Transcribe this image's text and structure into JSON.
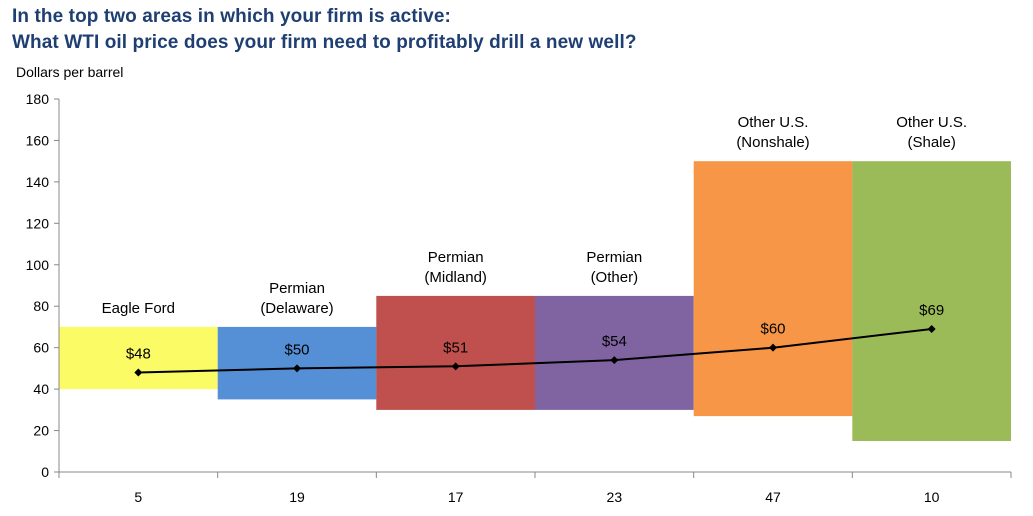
{
  "title": {
    "line1": "In the top two areas in which your firm is active:",
    "line2": "What WTI oil price does your firm need to profitably drill a new well?"
  },
  "chart_data": {
    "type": "bar",
    "ylabel": "Dollars  per barrel",
    "ylim": [
      0,
      180
    ],
    "yticks": [
      0,
      20,
      40,
      60,
      80,
      100,
      120,
      140,
      160,
      180
    ],
    "categories": [
      {
        "name_lines": [
          "Eagle  Ford"
        ],
        "count": "5",
        "low": 40,
        "high": 70,
        "price": 48,
        "price_label": "$48",
        "color": "#fbfb66"
      },
      {
        "name_lines": [
          "Permian",
          "(Delaware)"
        ],
        "count": "19",
        "low": 35,
        "high": 70,
        "price": 50,
        "price_label": "$50",
        "color": "#5590d6"
      },
      {
        "name_lines": [
          "Permian",
          "(Midland)"
        ],
        "count": "17",
        "low": 30,
        "high": 85,
        "price": 51,
        "price_label": "$51",
        "color": "#c0504d"
      },
      {
        "name_lines": [
          "Permian",
          "(Other)"
        ],
        "count": "23",
        "low": 30,
        "high": 85,
        "price": 54,
        "price_label": "$54",
        "color": "#8064a2"
      },
      {
        "name_lines": [
          "Other  U.S.",
          "(Nonshale)"
        ],
        "count": "47",
        "low": 27,
        "high": 150,
        "price": 60,
        "price_label": "$60",
        "color": "#f79646"
      },
      {
        "name_lines": [
          "Other  U.S.",
          "(Shale)"
        ],
        "count": "10",
        "low": 15,
        "high": 150,
        "price": 69,
        "price_label": "$69",
        "color": "#9bbb59"
      }
    ],
    "line_color": "#000000"
  }
}
